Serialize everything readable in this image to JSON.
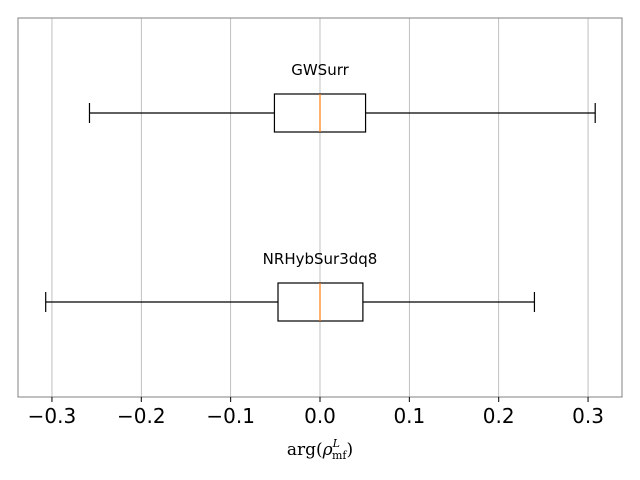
{
  "chart_data": {
    "type": "boxplot",
    "orientation": "horizontal",
    "xlim": [
      -0.338,
      0.338
    ],
    "x_ticks": [
      -0.3,
      -0.2,
      -0.1,
      0.0,
      0.1,
      0.2,
      0.3
    ],
    "x_tick_labels": [
      "−0.3",
      "−0.2",
      "−0.1",
      "0.0",
      "0.1",
      "0.2",
      "0.3"
    ],
    "xlabel": {
      "base": "arg(",
      "symbol": "ρ",
      "superscript": "L",
      "subscript": "mf",
      "close": ")"
    },
    "grid": "vertical",
    "series": [
      {
        "name": "GWSurr",
        "whisker_low": -0.258,
        "q1": -0.051,
        "median": 0.0,
        "q3": 0.051,
        "whisker_high": 0.308
      },
      {
        "name": "NRHybSur3dq8",
        "whisker_low": -0.307,
        "q1": -0.047,
        "median": 0.0,
        "q3": 0.048,
        "whisker_high": 0.24
      }
    ],
    "colors": {
      "box": "#000000",
      "median": "#ff7f0e",
      "grid": "#b0b0b0",
      "frame": "#808080"
    }
  }
}
